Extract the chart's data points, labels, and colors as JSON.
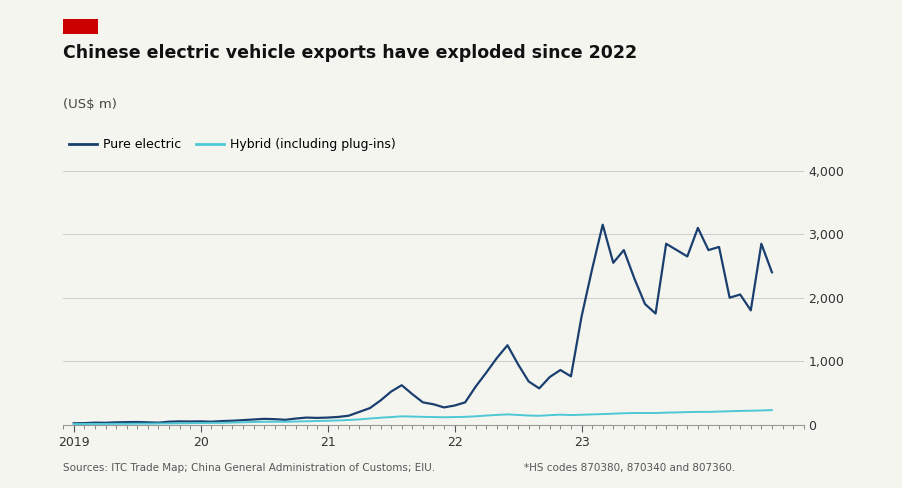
{
  "title": "Chinese electric vehicle exports have exploded since 2022",
  "subtitle": "(US$ m)",
  "red_bar_color": "#cc0000",
  "background_color": "#f5f5f0",
  "source_text": "Sources: ITC Trade Map; China General Administration of Customs; EIU.",
  "footnote_text": "*HS codes 870380, 870340 and 807360.",
  "legend_pure_electric": "Pure electric",
  "legend_hybrid": "Hybrid (including plug-ins)",
  "pure_electric_color": "#1a3f6f",
  "hybrid_color": "#4dc8d4",
  "grid_color": "#cccccc",
  "ylim": [
    0,
    4000
  ],
  "yticks": [
    0,
    1000,
    2000,
    3000,
    4000
  ],
  "pure_electric": [
    20,
    22,
    30,
    28,
    35,
    38,
    40,
    35,
    30,
    45,
    50,
    48,
    50,
    45,
    55,
    60,
    70,
    80,
    90,
    85,
    75,
    95,
    110,
    105,
    110,
    120,
    140,
    200,
    260,
    380,
    520,
    620,
    480,
    350,
    320,
    270,
    300,
    350,
    600,
    820,
    1050,
    1250,
    950,
    680,
    570,
    750,
    860,
    760,
    1700,
    2450,
    3150,
    2550,
    2750,
    2300,
    1900,
    1750,
    2850,
    2750,
    2650,
    3100,
    2750,
    2800,
    2000,
    2050,
    1800,
    2850,
    2400
  ],
  "hybrid": [
    8,
    9,
    10,
    10,
    12,
    12,
    14,
    14,
    16,
    18,
    20,
    22,
    24,
    26,
    28,
    32,
    36,
    40,
    44,
    44,
    44,
    48,
    52,
    56,
    60,
    65,
    72,
    82,
    95,
    108,
    118,
    130,
    126,
    122,
    118,
    115,
    118,
    122,
    130,
    142,
    152,
    160,
    152,
    142,
    138,
    148,
    156,
    150,
    155,
    160,
    165,
    172,
    178,
    182,
    182,
    182,
    188,
    192,
    196,
    200,
    200,
    205,
    210,
    215,
    218,
    222,
    228
  ],
  "n_months": 67,
  "xlim_left": 2018.92,
  "xlim_right": 2023.75
}
